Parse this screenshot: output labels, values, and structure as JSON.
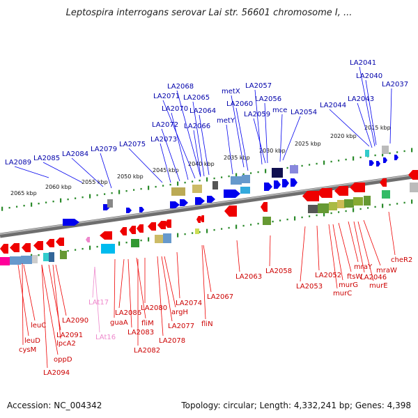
{
  "title": "Leptospira interrogans serovar Lai str. 56601 chromosome I, ...",
  "footer": {
    "accession": "Accession: NC_004342",
    "topology": "Topology: circular; Length: 4,332,241 bp; Genes: 4,398"
  },
  "kbp_ticks": [
    "2065 kbp",
    "2060 kbp",
    "2055 kbp",
    "2050 kbp",
    "2045 kbp",
    "2040 kbp",
    "2035 kbp",
    "2030 kbp",
    "2025 kbp",
    "2020 kbp",
    "2015 kbp"
  ],
  "colors": {
    "forward_gene": "#0000ee",
    "reverse_gene": "#ee0000",
    "pseudo_gene": "#ee88cc",
    "backbone": "#888888",
    "tick_green": "#2a8a2a",
    "blue_label": "#0000aa",
    "red_label": "#cc0000"
  },
  "top_labels": [
    "LA2089",
    "LA2085",
    "LA2084",
    "LA2079",
    "LA2075",
    "LA2073",
    "LA2072",
    "LA2070",
    "LA2071",
    "LA2068",
    "LA2065",
    "LA2064",
    "LA2066",
    "metX",
    "metY",
    "LA2060",
    "LA2057",
    "LA2056",
    "LA2059",
    "mce",
    "LA2054",
    "LA2044",
    "LA2043",
    "LA2041",
    "LA2040",
    "LA2037"
  ],
  "bottom_labels": [
    "leuC",
    "leuD",
    "cysM",
    "oppD",
    "LA2094",
    "LA2091",
    "lpcA2",
    "LA2090",
    "LAt17",
    "LAt16",
    "guaA",
    "LA2086",
    "LA2083",
    "fliM",
    "LA2080",
    "LA2082",
    "LA2078",
    "argH",
    "LA2077",
    "LA2074",
    "fliN",
    "LA2067",
    "LA2063",
    "LA2058",
    "LA2053",
    "LA2052",
    "murC",
    "murG",
    "ftsW",
    "mraY",
    "LA2046",
    "murE",
    "mraW",
    "cheR2"
  ]
}
